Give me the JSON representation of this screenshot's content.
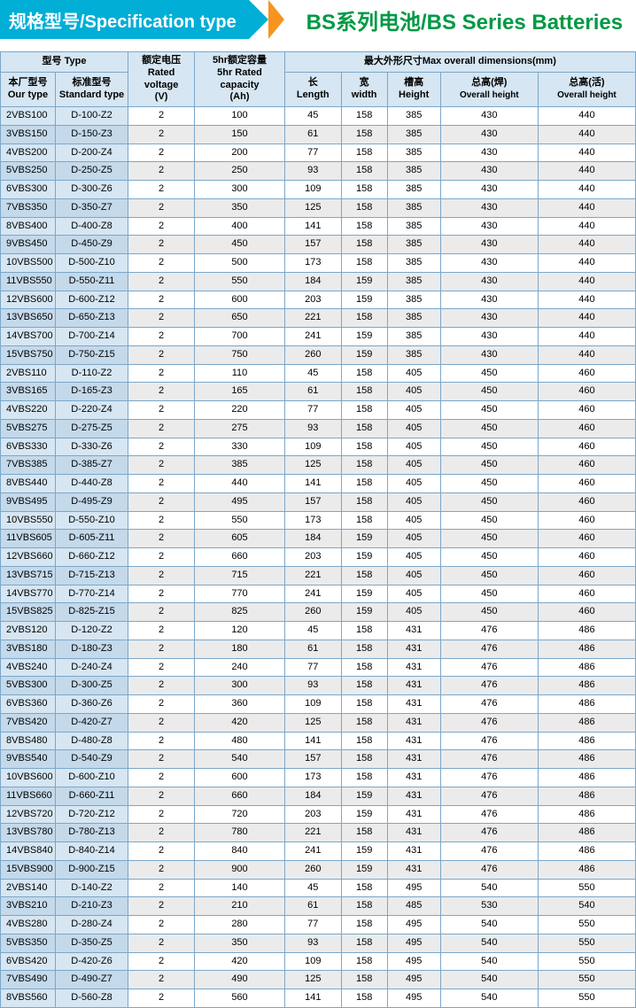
{
  "header": {
    "left": "规格型号/Specification type",
    "right": "BS系列电池/BS Series Batteries"
  },
  "columns": {
    "type_group": "型号 Type",
    "our_type_cn": "本厂型号",
    "our_type_en": "Our type",
    "std_type_cn": "标准型号",
    "std_type_en": "Standard type",
    "rated_voltage_cn": "额定电压",
    "rated_voltage_en1": "Rated",
    "rated_voltage_en2": "voltage",
    "rated_voltage_unit": "(V)",
    "rated_cap_cn": "5hr额定容量",
    "rated_cap_en1": "5hr Rated",
    "rated_cap_en2": "capacity",
    "rated_cap_unit": "(Ah)",
    "dims_group": "最大外形尺寸Max overall dimensions(mm)",
    "len_cn": "长",
    "len_en": "Length",
    "width_cn": "宽",
    "width_en": "width",
    "height_cn": "槽高",
    "height_en": "Height",
    "oh1_cn": "总高(焊)",
    "oh1_en": "Overall height",
    "oh2_cn": "总高(活)",
    "oh2_en": "Overall height"
  },
  "rows": [
    [
      "2VBS100",
      "D-100-Z2",
      "2",
      "100",
      "45",
      "158",
      "385",
      "430",
      "440"
    ],
    [
      "3VBS150",
      "D-150-Z3",
      "2",
      "150",
      "61",
      "158",
      "385",
      "430",
      "440"
    ],
    [
      "4VBS200",
      "D-200-Z4",
      "2",
      "200",
      "77",
      "158",
      "385",
      "430",
      "440"
    ],
    [
      "5VBS250",
      "D-250-Z5",
      "2",
      "250",
      "93",
      "158",
      "385",
      "430",
      "440"
    ],
    [
      "6VBS300",
      "D-300-Z6",
      "2",
      "300",
      "109",
      "158",
      "385",
      "430",
      "440"
    ],
    [
      "7VBS350",
      "D-350-Z7",
      "2",
      "350",
      "125",
      "158",
      "385",
      "430",
      "440"
    ],
    [
      "8VBS400",
      "D-400-Z8",
      "2",
      "400",
      "141",
      "158",
      "385",
      "430",
      "440"
    ],
    [
      "9VBS450",
      "D-450-Z9",
      "2",
      "450",
      "157",
      "158",
      "385",
      "430",
      "440"
    ],
    [
      "10VBS500",
      "D-500-Z10",
      "2",
      "500",
      "173",
      "158",
      "385",
      "430",
      "440"
    ],
    [
      "11VBS550",
      "D-550-Z11",
      "2",
      "550",
      "184",
      "159",
      "385",
      "430",
      "440"
    ],
    [
      "12VBS600",
      "D-600-Z12",
      "2",
      "600",
      "203",
      "159",
      "385",
      "430",
      "440"
    ],
    [
      "13VBS650",
      "D-650-Z13",
      "2",
      "650",
      "221",
      "158",
      "385",
      "430",
      "440"
    ],
    [
      "14VBS700",
      "D-700-Z14",
      "2",
      "700",
      "241",
      "159",
      "385",
      "430",
      "440"
    ],
    [
      "15VBS750",
      "D-750-Z15",
      "2",
      "750",
      "260",
      "159",
      "385",
      "430",
      "440"
    ],
    [
      "2VBS110",
      "D-110-Z2",
      "2",
      "110",
      "45",
      "158",
      "405",
      "450",
      "460"
    ],
    [
      "3VBS165",
      "D-165-Z3",
      "2",
      "165",
      "61",
      "158",
      "405",
      "450",
      "460"
    ],
    [
      "4VBS220",
      "D-220-Z4",
      "2",
      "220",
      "77",
      "158",
      "405",
      "450",
      "460"
    ],
    [
      "5VBS275",
      "D-275-Z5",
      "2",
      "275",
      "93",
      "158",
      "405",
      "450",
      "460"
    ],
    [
      "6VBS330",
      "D-330-Z6",
      "2",
      "330",
      "109",
      "158",
      "405",
      "450",
      "460"
    ],
    [
      "7VBS385",
      "D-385-Z7",
      "2",
      "385",
      "125",
      "158",
      "405",
      "450",
      "460"
    ],
    [
      "8VBS440",
      "D-440-Z8",
      "2",
      "440",
      "141",
      "158",
      "405",
      "450",
      "460"
    ],
    [
      "9VBS495",
      "D-495-Z9",
      "2",
      "495",
      "157",
      "158",
      "405",
      "450",
      "460"
    ],
    [
      "10VBS550",
      "D-550-Z10",
      "2",
      "550",
      "173",
      "158",
      "405",
      "450",
      "460"
    ],
    [
      "11VBS605",
      "D-605-Z11",
      "2",
      "605",
      "184",
      "159",
      "405",
      "450",
      "460"
    ],
    [
      "12VBS660",
      "D-660-Z12",
      "2",
      "660",
      "203",
      "159",
      "405",
      "450",
      "460"
    ],
    [
      "13VBS715",
      "D-715-Z13",
      "2",
      "715",
      "221",
      "158",
      "405",
      "450",
      "460"
    ],
    [
      "14VBS770",
      "D-770-Z14",
      "2",
      "770",
      "241",
      "159",
      "405",
      "450",
      "460"
    ],
    [
      "15VBS825",
      "D-825-Z15",
      "2",
      "825",
      "260",
      "159",
      "405",
      "450",
      "460"
    ],
    [
      "2VBS120",
      "D-120-Z2",
      "2",
      "120",
      "45",
      "158",
      "431",
      "476",
      "486"
    ],
    [
      "3VBS180",
      "D-180-Z3",
      "2",
      "180",
      "61",
      "158",
      "431",
      "476",
      "486"
    ],
    [
      "4VBS240",
      "D-240-Z4",
      "2",
      "240",
      "77",
      "158",
      "431",
      "476",
      "486"
    ],
    [
      "5VBS300",
      "D-300-Z5",
      "2",
      "300",
      "93",
      "158",
      "431",
      "476",
      "486"
    ],
    [
      "6VBS360",
      "D-360-Z6",
      "2",
      "360",
      "109",
      "158",
      "431",
      "476",
      "486"
    ],
    [
      "7VBS420",
      "D-420-Z7",
      "2",
      "420",
      "125",
      "158",
      "431",
      "476",
      "486"
    ],
    [
      "8VBS480",
      "D-480-Z8",
      "2",
      "480",
      "141",
      "158",
      "431",
      "476",
      "486"
    ],
    [
      "9VBS540",
      "D-540-Z9",
      "2",
      "540",
      "157",
      "158",
      "431",
      "476",
      "486"
    ],
    [
      "10VBS600",
      "D-600-Z10",
      "2",
      "600",
      "173",
      "158",
      "431",
      "476",
      "486"
    ],
    [
      "11VBS660",
      "D-660-Z11",
      "2",
      "660",
      "184",
      "159",
      "431",
      "476",
      "486"
    ],
    [
      "12VBS720",
      "D-720-Z12",
      "2",
      "720",
      "203",
      "159",
      "431",
      "476",
      "486"
    ],
    [
      "13VBS780",
      "D-780-Z13",
      "2",
      "780",
      "221",
      "158",
      "431",
      "476",
      "486"
    ],
    [
      "14VBS840",
      "D-840-Z14",
      "2",
      "840",
      "241",
      "159",
      "431",
      "476",
      "486"
    ],
    [
      "15VBS900",
      "D-900-Z15",
      "2",
      "900",
      "260",
      "159",
      "431",
      "476",
      "486"
    ],
    [
      "2VBS140",
      "D-140-Z2",
      "2",
      "140",
      "45",
      "158",
      "495",
      "540",
      "550"
    ],
    [
      "3VBS210",
      "D-210-Z3",
      "2",
      "210",
      "61",
      "158",
      "485",
      "530",
      "540"
    ],
    [
      "4VBS280",
      "D-280-Z4",
      "2",
      "280",
      "77",
      "158",
      "495",
      "540",
      "550"
    ],
    [
      "5VBS350",
      "D-350-Z5",
      "2",
      "350",
      "93",
      "158",
      "495",
      "540",
      "550"
    ],
    [
      "6VBS420",
      "D-420-Z6",
      "2",
      "420",
      "109",
      "158",
      "495",
      "540",
      "550"
    ],
    [
      "7VBS490",
      "D-490-Z7",
      "2",
      "490",
      "125",
      "158",
      "495",
      "540",
      "550"
    ],
    [
      "8VBS560",
      "D-560-Z8",
      "2",
      "560",
      "141",
      "158",
      "495",
      "540",
      "550"
    ]
  ]
}
